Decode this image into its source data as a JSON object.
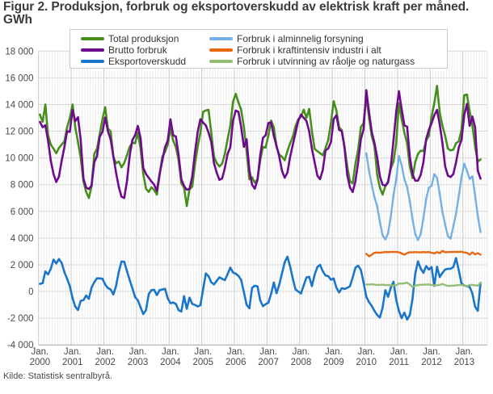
{
  "chart": {
    "title": "Figur 2. Produksjon, forbruk og eksportoverskudd av elektrisk kraft per måned. GWh",
    "source": "Kilde: Statistisk sentralbyrå."
  },
  "chart_data": {
    "type": "line",
    "title": "Figur 2. Produksjon, forbruk og eksportoverskudd av elektrisk kraft per måned. GWh",
    "ylabel": "GWh",
    "xlabel": "",
    "ylim": [
      -4000,
      18000
    ],
    "ytick_step": 2000,
    "grid": true,
    "legend_position": "top",
    "x_tick_prefix": "Jan.",
    "x_tick_years": [
      2000,
      2001,
      2002,
      2003,
      2004,
      2005,
      2006,
      2007,
      2008,
      2009,
      2010,
      2011,
      2012,
      2013
    ],
    "x_months_start": "2000-01",
    "x_months_end": "2013-07",
    "series": [
      {
        "name": "Total produksjon",
        "color": "#478f1d",
        "start_month_index": 0,
        "values": [
          13250,
          12700,
          14000,
          11700,
          11000,
          10700,
          10350,
          10750,
          11000,
          11250,
          12300,
          13000,
          14000,
          12300,
          11200,
          10000,
          8250,
          7460,
          7000,
          7900,
          10300,
          10700,
          11800,
          12900,
          13800,
          12200,
          12000,
          10100,
          9600,
          9730,
          9300,
          9620,
          10200,
          10830,
          11140,
          11100,
          11900,
          10700,
          8800,
          7700,
          7450,
          7800,
          7600,
          7250,
          8700,
          10100,
          10460,
          11000,
          12200,
          11300,
          10800,
          9830,
          8100,
          7780,
          6400,
          7650,
          7850,
          9500,
          10840,
          11900,
          13450,
          13560,
          13600,
          11900,
          10100,
          9620,
          9360,
          9570,
          10300,
          11400,
          12400,
          14200,
          14800,
          14160,
          13600,
          12300,
          10500,
          8400,
          8550,
          8150,
          8400,
          9830,
          10830,
          10770,
          11700,
          12800,
          12300,
          10830,
          10250,
          10090,
          9830,
          10510,
          11100,
          11600,
          12400,
          12900,
          13100,
          13615,
          13000,
          13670,
          12030,
          10680,
          10510,
          10360,
          10200,
          10730,
          11350,
          12615,
          14245,
          13560,
          12300,
          12080,
          10830,
          9360,
          8250,
          8100,
          9570,
          10620,
          12300,
          12615,
          14600,
          13020,
          11650,
          10900,
          8730,
          7780,
          7255,
          7885,
          8150,
          9200,
          9725,
          11125,
          14100,
          12900,
          11900,
          11100,
          9360,
          8490,
          9700,
          10300,
          10550,
          10500,
          11300,
          11650,
          13100,
          14100,
          15400,
          13400,
          12400,
          11650,
          10700,
          10565,
          10620,
          11100,
          11250,
          12100,
          14700,
          14750,
          13500,
          12450,
          10850,
          9730,
          9885
        ]
      },
      {
        "name": "Brutto forbruk",
        "color": "#6e0a8e",
        "start_month_index": 0,
        "values": [
          12700,
          12300,
          12450,
          11300,
          9800,
          8800,
          8200,
          8600,
          9800,
          10800,
          12000,
          11950,
          13600,
          12750,
          13050,
          11350,
          8460,
          7780,
          7675,
          7935,
          9675,
          10140,
          11600,
          11950,
          13030,
          12000,
          11400,
          10120,
          8900,
          7830,
          7100,
          7000,
          8250,
          10140,
          11350,
          11700,
          12400,
          11500,
          9260,
          8800,
          8520,
          8240,
          8000,
          7530,
          8800,
          9800,
          10800,
          11300,
          12900,
          11700,
          11600,
          10200,
          8400,
          7900,
          7620,
          7680,
          8600,
          10400,
          11950,
          12900,
          12650,
          12440,
          11900,
          11200,
          9600,
          8900,
          8360,
          8460,
          9250,
          10300,
          10800,
          12800,
          13550,
          13450,
          12300,
          10830,
          11400,
          9100,
          8000,
          7700,
          8360,
          10200,
          11500,
          11700,
          12615,
          12670,
          11650,
          10900,
          10100,
          9040,
          8520,
          8900,
          10090,
          11000,
          11900,
          12800,
          13245,
          13000,
          12770,
          12000,
          10700,
          9675,
          8675,
          8410,
          9095,
          10565,
          10700,
          11190,
          12900,
          13200,
          12100,
          12000,
          10750,
          8725,
          7780,
          7450,
          8250,
          9675,
          11400,
          12140,
          15075,
          13440,
          11950,
          11125,
          10040,
          8620,
          7990,
          7935,
          8200,
          9360,
          11300,
          13440,
          15000,
          13650,
          12440,
          12350,
          10090,
          8790,
          8300,
          8300,
          8730,
          9675,
          11400,
          12100,
          12600,
          13200,
          13600,
          12500,
          11100,
          9360,
          8675,
          8570,
          8790,
          9675,
          10780,
          11350,
          13200,
          14050,
          12400,
          13100,
          12300,
          9040,
          8450
        ]
      },
      {
        "name": "Eksportoverskudd",
        "color": "#1a76c8",
        "start_month_index": 0,
        "values": [
          570,
          620,
          1500,
          1280,
          1700,
          2390,
          2100,
          2430,
          2140,
          1450,
          950,
          400,
          -500,
          -1130,
          -1390,
          -700,
          -650,
          -300,
          -550,
          300,
          700,
          990,
          980,
          950,
          520,
          260,
          150,
          -220,
          420,
          1470,
          2240,
          2230,
          1530,
          870,
          240,
          -420,
          -660,
          -1180,
          -1690,
          -1400,
          -200,
          100,
          130,
          -270,
          100,
          150,
          200,
          -510,
          -880,
          -825,
          -930,
          -1400,
          -1500,
          -350,
          -1300,
          -460,
          -930,
          -1000,
          -1120,
          -1030,
          170,
          1350,
          1150,
          690,
          530,
          800,
          1060,
          950,
          850,
          1300,
          1790,
          1420,
          1330,
          1170,
          860,
          -50,
          -1000,
          -1260,
          270,
          430,
          385,
          -670,
          -1100,
          -950,
          -840,
          -180,
          670,
          -130,
          513,
          1350,
          2190,
          2610,
          1870,
          940,
          145,
          0,
          -150,
          470,
          1050,
          1100,
          400,
          1250,
          1830,
          2000,
          1515,
          1200,
          1150,
          885,
          980,
          290,
          -80,
          250,
          190,
          270,
          400,
          1050,
          1780,
          1935,
          1620,
          670,
          -400,
          -800,
          -1080,
          -1450,
          -1760,
          -1950,
          -1200,
          100,
          -400,
          290,
          730,
          -630,
          -1450,
          -2000,
          -1580,
          -2100,
          -1760,
          -530,
          1335,
          2260,
          1710,
          1400,
          1900,
          1645,
          1830,
          410,
          1860,
          1080,
          1400,
          1645,
          1700,
          1700,
          1830,
          2500,
          1585,
          600,
          450,
          385,
          345,
          -150,
          -1140,
          -1450,
          650
        ]
      },
      {
        "name": "Forbruk i alminnelig forsyning",
        "color": "#74b0e4",
        "start_month_index": 120,
        "values": [
          10350,
          9040,
          7990,
          7045,
          6400,
          5200,
          4200,
          3900,
          4350,
          5600,
          7200,
          8400,
          10140,
          9460,
          8410,
          7830,
          6750,
          5400,
          4300,
          3850,
          4300,
          5500,
          6900,
          7780,
          7900,
          8790,
          8520,
          7300,
          5950,
          5000,
          4150,
          3950,
          4860,
          5840,
          7130,
          8560,
          9580,
          9040,
          8420,
          8630,
          7200,
          5635,
          4450
        ]
      },
      {
        "name": "Forbruk i kraftintensiv industri i alt",
        "color": "#e8670f",
        "start_month_index": 120,
        "values": [
          2820,
          2630,
          2750,
          2900,
          2920,
          2900,
          2930,
          2950,
          2950,
          2960,
          2970,
          2960,
          2940,
          2850,
          2760,
          2870,
          2940,
          2930,
          2950,
          2940,
          2930,
          2950,
          2940,
          2950,
          2900,
          2850,
          2950,
          2870,
          3040,
          2940,
          2950,
          2960,
          2960,
          2970,
          2960,
          2980,
          2920,
          2900,
          2760,
          2930,
          2780,
          2870,
          2760
        ]
      },
      {
        "name": "Forbruk i utvinning av råolje og naturgass",
        "color": "#96bd77",
        "start_month_index": 120,
        "values": [
          530,
          520,
          540,
          510,
          500,
          490,
          510,
          480,
          490,
          470,
          450,
          460,
          600,
          590,
          620,
          660,
          520,
          345,
          430,
          490,
          500,
          510,
          520,
          530,
          490,
          450,
          470,
          500,
          560,
          480,
          420,
          430,
          440,
          460,
          480,
          490,
          440,
          390,
          490,
          490,
          460,
          440,
          640
        ]
      }
    ]
  }
}
